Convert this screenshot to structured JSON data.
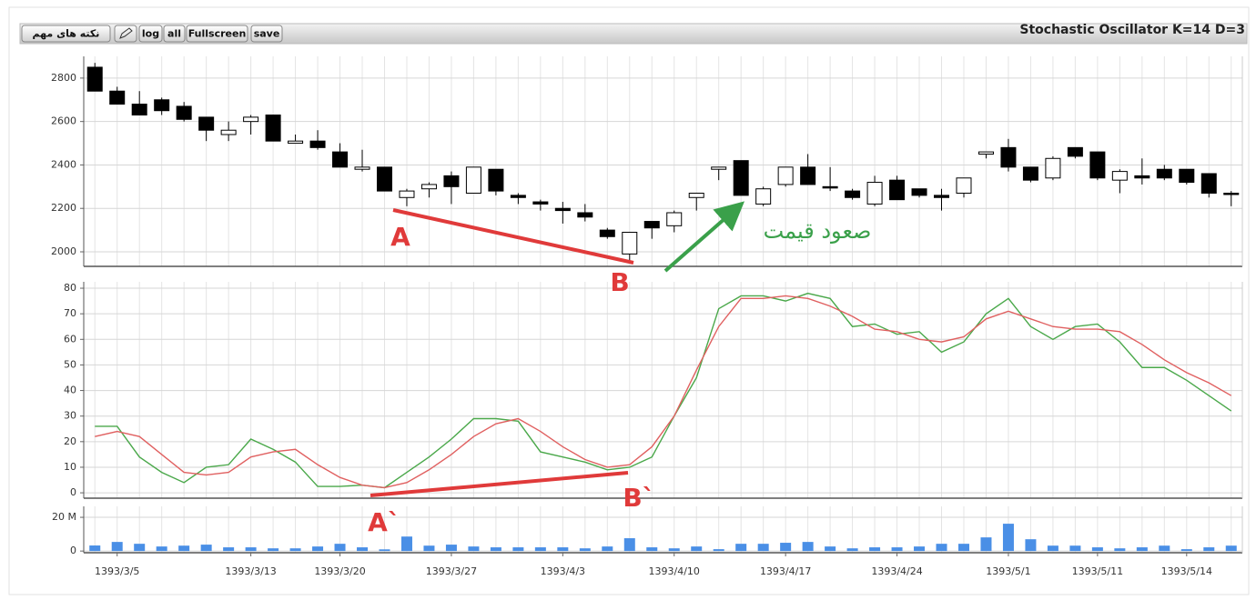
{
  "title": "Stochastic Oscillator K=14 D=3",
  "toolbar": {
    "buttons": [
      "نکته های مهم",
      "log",
      "all",
      "Fullscreen",
      "save"
    ]
  },
  "chart_data": [
    {
      "type": "candlestick",
      "open": [
        2850,
        2740,
        2680,
        2700,
        2670,
        2620,
        2540,
        2600,
        2630,
        2500,
        2510,
        2460,
        2380,
        2390,
        2250,
        2290,
        2350,
        2270,
        2380,
        2260,
        2230,
        2200,
        2180,
        2100,
        1990,
        2140,
        2120,
        2250,
        2380,
        2420,
        2220,
        2310,
        2390,
        2300,
        2280,
        2220,
        2330,
        2290,
        2260,
        2270,
        2450,
        2480,
        2390,
        2340,
        2480,
        2460,
        2330,
        2350,
        2380,
        2380,
        2360,
        2270
      ],
      "high": [
        2870,
        2760,
        2740,
        2710,
        2690,
        2620,
        2600,
        2630,
        2630,
        2540,
        2560,
        2500,
        2470,
        2390,
        2290,
        2320,
        2370,
        2390,
        2380,
        2270,
        2240,
        2230,
        2220,
        2110,
        2090,
        2140,
        2190,
        2270,
        2390,
        2420,
        2300,
        2390,
        2450,
        2390,
        2290,
        2350,
        2350,
        2290,
        2290,
        2340,
        2460,
        2520,
        2390,
        2440,
        2480,
        2460,
        2380,
        2430,
        2400,
        2380,
        2360,
        2280
      ],
      "low": [
        2740,
        2680,
        2630,
        2630,
        2600,
        2510,
        2510,
        2540,
        2510,
        2500,
        2470,
        2390,
        2370,
        2280,
        2210,
        2250,
        2220,
        2270,
        2260,
        2220,
        2190,
        2130,
        2140,
        2060,
        1960,
        2060,
        2090,
        2190,
        2330,
        2260,
        2210,
        2300,
        2310,
        2280,
        2240,
        2210,
        2240,
        2250,
        2190,
        2250,
        2430,
        2370,
        2320,
        2330,
        2430,
        2330,
        2270,
        2310,
        2330,
        2310,
        2250,
        2210
      ],
      "close": [
        2740,
        2680,
        2630,
        2650,
        2610,
        2560,
        2560,
        2620,
        2510,
        2510,
        2480,
        2390,
        2390,
        2280,
        2280,
        2310,
        2300,
        2390,
        2280,
        2250,
        2220,
        2190,
        2160,
        2070,
        2090,
        2110,
        2180,
        2270,
        2390,
        2260,
        2290,
        2390,
        2310,
        2295,
        2250,
        2320,
        2240,
        2260,
        2250,
        2340,
        2460,
        2390,
        2330,
        2430,
        2440,
        2340,
        2370,
        2340,
        2340,
        2320,
        2270,
        2265
      ],
      "up_color": "#ffffff",
      "down_color": "#000000",
      "ylim": [
        1933,
        2900
      ],
      "yticks": [
        2000,
        2200,
        2400,
        2600,
        2800
      ],
      "grid": true,
      "annotations": [
        "A",
        "B",
        "صعود قیمت"
      ]
    },
    {
      "type": "line",
      "series": [
        {
          "color": "#4aa84a",
          "values": [
            26,
            26,
            14,
            8,
            4,
            10,
            11,
            21,
            17,
            12,
            2.5,
            2.5,
            3,
            2,
            8,
            14,
            21,
            29,
            29,
            28,
            16,
            14,
            12,
            9,
            10,
            14,
            30,
            45,
            72,
            77,
            77,
            75,
            78,
            76,
            65,
            66,
            62,
            63,
            55,
            59,
            70,
            76,
            65,
            60,
            65,
            66,
            59,
            49,
            49,
            44,
            38,
            32
          ]
        },
        {
          "color": "#e06060",
          "values": [
            22,
            24,
            22,
            15,
            8,
            7,
            8,
            14,
            16,
            17,
            11,
            6,
            3,
            2,
            4,
            9,
            15,
            22,
            27,
            29,
            24,
            18,
            13,
            10,
            11,
            18,
            30,
            48,
            65,
            76,
            76,
            77,
            76,
            73,
            69,
            64,
            63,
            60,
            59,
            61,
            68,
            71,
            68,
            65,
            64,
            64,
            63,
            58,
            52,
            47,
            43,
            38
          ]
        }
      ],
      "ylim": [
        -2.1,
        82.5
      ],
      "yticks": [
        0,
        10,
        20,
        30,
        40,
        50,
        60,
        70,
        80
      ],
      "grid": true,
      "annotations": [
        "A`",
        "B`"
      ]
    },
    {
      "type": "bar",
      "categories": [
        null,
        "1393/3/5",
        null,
        null,
        null,
        null,
        null,
        "1393/3/13",
        null,
        null,
        null,
        "1393/3/20",
        null,
        null,
        null,
        null,
        "1393/3/27",
        null,
        null,
        null,
        null,
        "1393/4/3",
        null,
        null,
        null,
        null,
        "1393/4/10",
        null,
        null,
        null,
        null,
        "1393/4/17",
        null,
        null,
        null,
        null,
        "1393/4/24",
        null,
        null,
        null,
        null,
        "1393/5/1",
        null,
        null,
        null,
        "1393/5/11",
        null,
        null,
        null,
        "1393/5/14",
        null,
        null
      ],
      "values": [
        3300000,
        5400000,
        4300000,
        2700000,
        3200000,
        3800000,
        2200000,
        2200000,
        1600000,
        1600000,
        2700000,
        4300000,
        2200000,
        1000000,
        8600000,
        3200000,
        3800000,
        2700000,
        2200000,
        2200000,
        2200000,
        2200000,
        1600000,
        2700000,
        7600000,
        2200000,
        1600000,
        2700000,
        1100000,
        4300000,
        4300000,
        4900000,
        5400000,
        2700000,
        1600000,
        2200000,
        2200000,
        2700000,
        4300000,
        4300000,
        8100000,
        16200000,
        7000000,
        3200000,
        3200000,
        2200000,
        1600000,
        2200000,
        3200000,
        1100000,
        2200000,
        3200000
      ],
      "color": "#4a8fe6",
      "ylim": [
        -1000000,
        26500000
      ],
      "yticks": [
        0,
        {
          "value": 20000000,
          "label": "20 M"
        }
      ],
      "grid": true
    }
  ]
}
